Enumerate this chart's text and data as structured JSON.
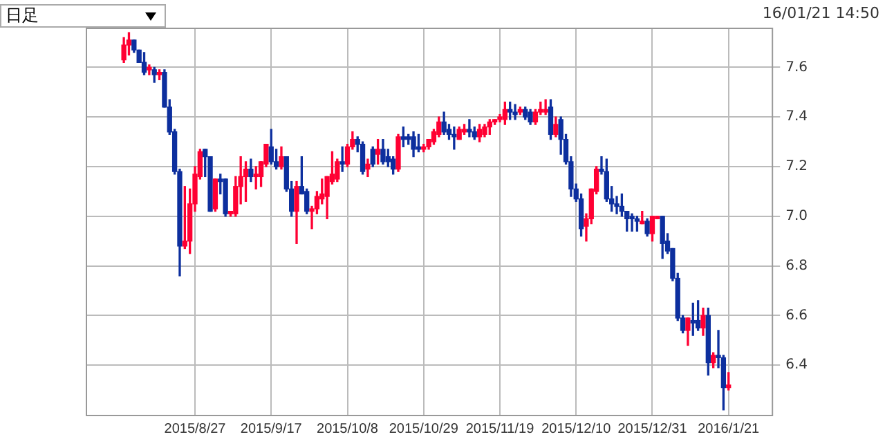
{
  "chart_data": {
    "type": "candlestick",
    "annotations": [
      "日足",
      "16/01/21 14:50"
    ],
    "categories": [
      null,
      null,
      null,
      null,
      null,
      null,
      null,
      null,
      null,
      null,
      null,
      null,
      null,
      null,
      null,
      null,
      null,
      null,
      null,
      null,
      null,
      "2015/8/27",
      null,
      null,
      null,
      null,
      null,
      null,
      null,
      null,
      null,
      null,
      null,
      null,
      null,
      null,
      "2015/9/17",
      null,
      null,
      null,
      null,
      null,
      null,
      null,
      null,
      null,
      null,
      null,
      null,
      null,
      null,
      "2015/10/8",
      null,
      null,
      null,
      null,
      null,
      null,
      null,
      null,
      null,
      null,
      null,
      null,
      null,
      null,
      "2015/10/29",
      null,
      null,
      null,
      null,
      null,
      null,
      null,
      null,
      null,
      null,
      null,
      null,
      null,
      null,
      "2015/11/19",
      null,
      null,
      null,
      null,
      null,
      null,
      null,
      null,
      null,
      null,
      null,
      null,
      null,
      null,
      "2015/12/10",
      null,
      null,
      null,
      null,
      null,
      null,
      null,
      null,
      null,
      null,
      null,
      null,
      null,
      null,
      "2015/12/31",
      null,
      null,
      null,
      null,
      null,
      null,
      null,
      null,
      null,
      null,
      null,
      null,
      null,
      null,
      "2016/1/21",
      null,
      null,
      null,
      null,
      null,
      null,
      null,
      null
    ],
    "ohlc": [
      null,
      null,
      null,
      null,
      null,
      null,
      null,
      [
        7.63,
        7.72,
        7.62,
        7.69
      ],
      [
        7.69,
        7.74,
        7.65,
        7.71
      ],
      [
        7.71,
        7.71,
        7.66,
        7.67
      ],
      [
        7.67,
        7.67,
        7.62,
        7.62
      ],
      [
        7.62,
        7.66,
        7.57,
        7.58
      ],
      [
        7.59,
        7.61,
        7.57,
        7.6
      ],
      [
        7.59,
        7.6,
        7.54,
        7.57
      ],
      [
        7.57,
        7.59,
        7.55,
        7.58
      ],
      [
        7.58,
        7.59,
        7.44,
        7.44
      ],
      [
        7.44,
        7.47,
        7.33,
        7.34
      ],
      [
        7.34,
        7.35,
        7.17,
        7.18
      ],
      [
        7.18,
        7.19,
        6.76,
        6.88
      ],
      [
        6.88,
        7.12,
        6.87,
        6.9
      ],
      [
        6.9,
        7.11,
        6.85,
        7.05
      ],
      [
        7.05,
        7.2,
        7.02,
        7.17
      ],
      [
        7.16,
        7.27,
        7.15,
        7.26
      ],
      [
        7.27,
        7.27,
        7.16,
        7.24
      ],
      [
        7.24,
        7.24,
        7.02,
        7.02
      ],
      [
        7.03,
        7.15,
        7.02,
        7.15
      ],
      [
        7.15,
        7.17,
        7.09,
        7.14
      ],
      [
        7.15,
        7.15,
        7.0,
        7.01
      ],
      [
        7.01,
        7.02,
        7.0,
        7.02
      ],
      [
        7.01,
        7.16,
        7.0,
        7.12
      ],
      [
        7.12,
        7.24,
        7.05,
        7.16
      ],
      [
        7.16,
        7.22,
        7.06,
        7.19
      ],
      [
        7.19,
        7.23,
        7.14,
        7.16
      ],
      [
        7.16,
        7.2,
        7.11,
        7.17
      ],
      [
        7.16,
        7.22,
        7.12,
        7.22
      ],
      [
        7.21,
        7.29,
        7.2,
        7.29
      ],
      [
        7.28,
        7.35,
        7.21,
        7.22
      ],
      [
        7.22,
        7.27,
        7.19,
        7.2
      ],
      [
        7.2,
        7.28,
        7.19,
        7.24
      ],
      [
        7.24,
        7.24,
        7.1,
        7.11
      ],
      [
        7.11,
        7.14,
        7.0,
        7.02
      ],
      [
        7.02,
        7.14,
        6.89,
        7.12
      ],
      [
        7.12,
        7.24,
        7.09,
        7.09
      ],
      [
        7.1,
        7.11,
        7.01,
        7.02
      ],
      [
        7.02,
        7.04,
        6.95,
        7.03
      ],
      [
        7.03,
        7.1,
        7.01,
        7.08
      ],
      [
        7.07,
        7.15,
        7.05,
        7.09
      ],
      [
        7.08,
        7.16,
        6.99,
        7.16
      ],
      [
        7.14,
        7.26,
        7.13,
        7.17
      ],
      [
        7.15,
        7.23,
        7.14,
        7.22
      ],
      [
        7.22,
        7.28,
        7.18,
        7.21
      ],
      [
        7.21,
        7.29,
        7.2,
        7.28
      ],
      [
        7.28,
        7.34,
        7.27,
        7.31
      ],
      [
        7.31,
        7.32,
        7.26,
        7.29
      ],
      [
        7.29,
        7.3,
        7.17,
        7.18
      ],
      [
        7.19,
        7.23,
        7.16,
        7.21
      ],
      [
        7.27,
        7.28,
        7.2,
        7.21
      ],
      [
        7.25,
        7.31,
        7.21,
        7.27
      ],
      [
        7.27,
        7.31,
        7.21,
        7.22
      ],
      [
        7.24,
        7.27,
        7.2,
        7.22
      ],
      [
        7.23,
        7.24,
        7.17,
        7.19
      ],
      [
        7.19,
        7.33,
        7.18,
        7.32
      ],
      [
        7.32,
        7.36,
        7.28,
        7.31
      ],
      [
        7.32,
        7.33,
        7.29,
        7.31
      ],
      [
        7.32,
        7.34,
        7.24,
        7.27
      ],
      [
        7.28,
        7.33,
        7.26,
        7.27
      ],
      [
        7.27,
        7.29,
        7.26,
        7.28
      ],
      [
        7.28,
        7.31,
        7.27,
        7.31
      ],
      [
        7.3,
        7.35,
        7.29,
        7.34
      ],
      [
        7.33,
        7.4,
        7.32,
        7.38
      ],
      [
        7.38,
        7.42,
        7.33,
        7.34
      ],
      [
        7.35,
        7.37,
        7.31,
        7.33
      ],
      [
        7.33,
        7.36,
        7.27,
        7.32
      ],
      [
        7.31,
        7.36,
        7.31,
        7.35
      ],
      [
        7.34,
        7.37,
        7.33,
        7.35
      ],
      [
        7.35,
        7.39,
        7.32,
        7.34
      ],
      [
        7.34,
        7.36,
        7.31,
        7.32
      ],
      [
        7.32,
        7.37,
        7.3,
        7.35
      ],
      [
        7.33,
        7.37,
        7.32,
        7.36
      ],
      [
        7.36,
        7.39,
        7.33,
        7.38
      ],
      [
        7.38,
        7.39,
        7.37,
        7.39
      ],
      [
        7.39,
        7.41,
        7.38,
        7.4
      ],
      [
        7.39,
        7.46,
        7.37,
        7.43
      ],
      [
        7.43,
        7.46,
        7.39,
        7.42
      ],
      [
        7.42,
        7.45,
        7.39,
        7.41
      ],
      [
        7.42,
        7.44,
        7.41,
        7.43
      ],
      [
        7.43,
        7.44,
        7.39,
        7.4
      ],
      [
        7.42,
        7.43,
        7.37,
        7.38
      ],
      [
        7.38,
        7.43,
        7.37,
        7.42
      ],
      [
        7.42,
        7.46,
        7.41,
        7.43
      ],
      [
        7.42,
        7.47,
        7.41,
        7.43
      ],
      [
        7.44,
        7.47,
        7.31,
        7.33
      ],
      [
        7.33,
        7.4,
        7.32,
        7.37
      ],
      [
        7.39,
        7.4,
        7.25,
        7.31
      ],
      [
        7.31,
        7.33,
        7.21,
        7.22
      ],
      [
        7.22,
        7.24,
        7.08,
        7.11
      ],
      [
        7.11,
        7.13,
        7.06,
        7.07
      ],
      [
        7.07,
        7.09,
        6.92,
        6.95
      ],
      [
        6.96,
        7.01,
        6.9,
        6.99
      ],
      [
        6.99,
        7.11,
        6.97,
        7.11
      ],
      [
        7.1,
        7.2,
        7.09,
        7.19
      ],
      [
        7.19,
        7.24,
        7.17,
        7.18
      ],
      [
        7.18,
        7.23,
        7.06,
        7.07
      ],
      [
        7.07,
        7.12,
        7.02,
        7.05
      ],
      [
        7.05,
        7.08,
        7.01,
        7.04
      ],
      [
        7.04,
        7.09,
        7.0,
        7.02
      ],
      [
        7.02,
        7.02,
        6.94,
        6.99
      ],
      [
        7.0,
        7.01,
        6.94,
        6.99
      ],
      [
        6.99,
        7.0,
        6.94,
        6.98
      ],
      [
        6.97,
        7.02,
        6.97,
        6.98
      ],
      [
        6.98,
        6.99,
        6.92,
        6.93
      ],
      [
        6.93,
        7.0,
        6.9,
        7.0
      ],
      [
        6.99,
        7.0,
        6.99,
        7.0
      ],
      [
        7.0,
        7.0,
        6.83,
        6.89
      ],
      [
        6.9,
        6.93,
        6.85,
        6.86
      ],
      [
        6.87,
        6.87,
        6.74,
        6.75
      ],
      [
        6.75,
        6.77,
        6.58,
        6.59
      ],
      [
        6.59,
        6.6,
        6.53,
        6.54
      ],
      [
        6.54,
        6.59,
        6.48,
        6.59
      ],
      [
        6.58,
        6.65,
        6.52,
        6.57
      ],
      [
        6.58,
        6.66,
        6.54,
        6.55
      ],
      [
        6.55,
        6.63,
        6.52,
        6.6
      ],
      [
        6.6,
        6.63,
        6.36,
        6.41
      ],
      [
        6.41,
        6.45,
        6.39,
        6.44
      ],
      [
        6.44,
        6.54,
        6.39,
        6.43
      ],
      [
        6.43,
        6.44,
        6.22,
        6.31
      ],
      [
        6.31,
        6.37,
        6.3,
        6.32
      ],
      null,
      null,
      null,
      null,
      null,
      null,
      null,
      null
    ],
    "colors": [
      null,
      null,
      null,
      null,
      null,
      null,
      null,
      "#ff0033",
      "#ff0033",
      "#0d2f9e",
      "#0d2f9e",
      "#0d2f9e",
      "#ff0033",
      "#0d2f9e",
      "#ff0033",
      "#0d2f9e",
      "#0d2f9e",
      "#0d2f9e",
      "#0d2f9e",
      "#ff0033",
      "#ff0033",
      "#ff0033",
      "#ff0033",
      "#0d2f9e",
      "#0d2f9e",
      "#ff0033",
      "#0d2f9e",
      "#0d2f9e",
      "#ff0033",
      "#ff0033",
      "#ff0033",
      "#ff0033",
      "#0d2f9e",
      "#ff0033",
      "#ff0033",
      "#ff0033",
      "#0d2f9e",
      "#0d2f9e",
      "#ff0033",
      "#0d2f9e",
      "#0d2f9e",
      "#ff0033",
      "#0d2f9e",
      "#0d2f9e",
      "#ff0033",
      "#ff0033",
      "#ff0033",
      "#ff0033",
      "#ff0033",
      "#ff0033",
      "#0d2f9e",
      "#ff0033",
      "#ff0033",
      "#0d2f9e",
      "#0d2f9e",
      "#ff0033",
      "#0d2f9e",
      "#ff0033",
      "#0d2f9e",
      "#0d2f9e",
      "#0d2f9e",
      "#ff0033",
      "#0d2f9e",
      "#0d2f9e",
      "#0d2f9e",
      "#0d2f9e",
      "#ff0033",
      "#ff0033",
      "#ff0033",
      "#ff0033",
      "#0d2f9e",
      "#0d2f9e",
      "#0d2f9e",
      "#ff0033",
      "#ff0033",
      "#0d2f9e",
      "#0d2f9e",
      "#ff0033",
      "#ff0033",
      "#ff0033",
      "#ff0033",
      "#ff0033",
      "#ff0033",
      "#0d2f9e",
      "#0d2f9e",
      "#ff0033",
      "#0d2f9e",
      "#0d2f9e",
      "#ff0033",
      "#ff0033",
      "#ff0033",
      "#0d2f9e",
      "#ff0033",
      "#0d2f9e",
      "#0d2f9e",
      "#0d2f9e",
      "#0d2f9e",
      "#0d2f9e",
      "#ff0033",
      "#ff0033",
      "#ff0033",
      "#0d2f9e",
      "#0d2f9e",
      "#0d2f9e",
      "#0d2f9e",
      "#0d2f9e",
      "#0d2f9e",
      "#0d2f9e",
      "#0d2f9e",
      "#ff0033",
      "#0d2f9e",
      "#ff0033",
      "#ff0033",
      "#0d2f9e",
      "#0d2f9e",
      "#0d2f9e",
      "#0d2f9e",
      "#0d2f9e",
      "#ff0033",
      "#0d2f9e",
      "#0d2f9e",
      "#ff0033",
      "#0d2f9e",
      "#ff0033",
      "#0d2f9e",
      "#0d2f9e",
      "#ff0033",
      null,
      null,
      null,
      null,
      null,
      null,
      null,
      null
    ],
    "ylim": [
      6.2,
      7.76
    ],
    "yticks": [
      {
        "value": 6.4,
        "label": "6.4"
      },
      {
        "value": 6.6,
        "label": "6.6"
      },
      {
        "value": 6.8,
        "label": "6.8"
      },
      {
        "value": 7.0,
        "label": "7.0"
      },
      {
        "value": 7.2,
        "label": "7.2"
      },
      {
        "value": 7.4,
        "label": "7.4"
      },
      {
        "value": 7.6,
        "label": "7.6"
      }
    ],
    "grid": true
  }
}
